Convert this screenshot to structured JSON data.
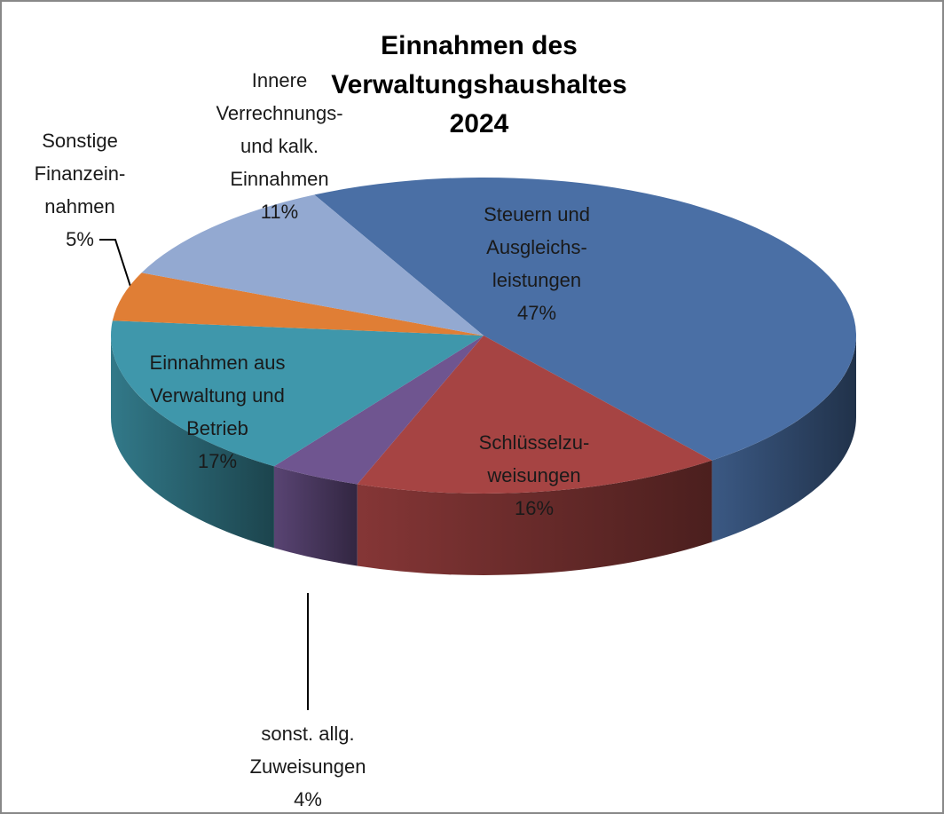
{
  "chart_data": {
    "type": "pie",
    "title": "Einnahmen des Verwaltungshaushaltes\n2024",
    "categories": [
      "Steuern und\nAusgleichs-\nleistungen",
      "Schlüsselzu-\nweisungen",
      "sonst. allg.\nZuweisungen",
      "Einnahmen aus\nVerwaltung und\nBetrieb",
      "Sonstige\nFinanzein-\nnahmen",
      "Innere\nVerrechnungs-\nund kalk.\nEinnahmen"
    ],
    "values": [
      47,
      16,
      4,
      17,
      5,
      11
    ],
    "value_labels": [
      "47%",
      "16%",
      "4%",
      "17%",
      "5%",
      "11%"
    ],
    "colors": [
      "#4a6fa5",
      "#a64443",
      "#6f5590",
      "#3f97ab",
      "#e07e35",
      "#93a9d1"
    ]
  }
}
